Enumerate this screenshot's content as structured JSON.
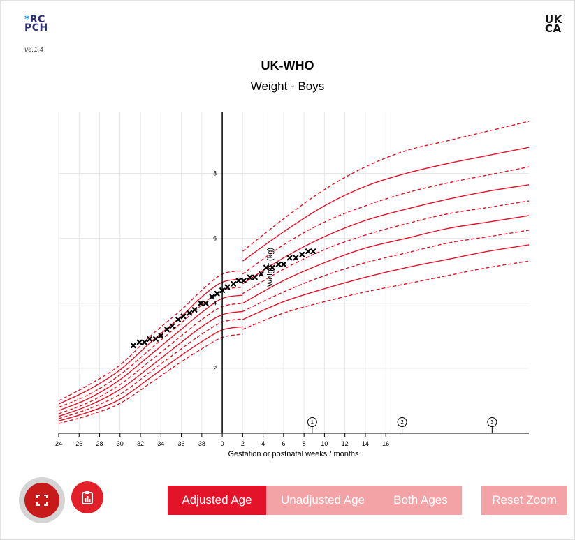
{
  "header": {
    "logo_line1": "RC",
    "logo_line2": "PCH",
    "version": "v6.1.4",
    "ukca_line1": "UK",
    "ukca_line2": "CA"
  },
  "chart_data": {
    "type": "line",
    "title": "UK-WHO",
    "subtitle": "Weight - Boys",
    "xlabel": "Gestation or postnatal weeks / months",
    "ylabel": "Weight (kg)",
    "x_ticks": [
      "24",
      "26",
      "28",
      "30",
      "32",
      "34",
      "36",
      "38",
      "0",
      "2",
      "4",
      "6",
      "8",
      "10",
      "12",
      "14",
      "16"
    ],
    "y_ticks": [
      "2",
      "4",
      "6",
      "8"
    ],
    "ylim": [
      0,
      9.9
    ],
    "grid": true,
    "line_color": "#e3142a",
    "measurement_color": "#000000",
    "milestones": [
      {
        "label": "1",
        "x_tick_position": 4.4
      },
      {
        "label": "2",
        "x_tick_position": 8.8
      },
      {
        "label": "3",
        "x_tick_position": 13.2
      }
    ],
    "note": "x positions below are expressed on the printed tick scale: 24-38 = gestation weeks, 0 = birth (40 weeks), 2-16 = postnatal months",
    "centile_lines": {
      "x": [
        24,
        27,
        30,
        33,
        36,
        38,
        40,
        42
      ],
      "preterm": [
        {
          "name": "99.6th",
          "style": "dashed",
          "values": [
            1.0,
            1.5,
            2.1,
            3.0,
            3.8,
            4.4,
            4.9,
            5.0
          ]
        },
        {
          "name": "98th",
          "style": "solid",
          "values": [
            0.9,
            1.35,
            1.95,
            2.8,
            3.6,
            4.2,
            4.65,
            4.75
          ]
        },
        {
          "name": "91st",
          "style": "dashed",
          "values": [
            0.8,
            1.2,
            1.8,
            2.6,
            3.4,
            3.95,
            4.4,
            4.5
          ]
        },
        {
          "name": "75th",
          "style": "solid",
          "values": [
            0.7,
            1.08,
            1.65,
            2.42,
            3.2,
            3.72,
            4.15,
            4.25
          ]
        },
        {
          "name": "50th",
          "style": "dashed",
          "values": [
            0.6,
            0.96,
            1.5,
            2.24,
            3.0,
            3.5,
            3.9,
            4.0
          ]
        },
        {
          "name": "25th",
          "style": "solid",
          "values": [
            0.52,
            0.86,
            1.35,
            2.06,
            2.8,
            3.28,
            3.65,
            3.75
          ]
        },
        {
          "name": "9th",
          "style": "dashed",
          "values": [
            0.45,
            0.76,
            1.2,
            1.9,
            2.6,
            3.05,
            3.42,
            3.52
          ]
        },
        {
          "name": "2nd",
          "style": "solid",
          "values": [
            0.38,
            0.66,
            1.05,
            1.72,
            2.4,
            2.82,
            3.18,
            3.28
          ]
        },
        {
          "name": "0.4th",
          "style": "dashed",
          "values": [
            0.3,
            0.56,
            0.92,
            1.55,
            2.2,
            2.6,
            2.95,
            3.05
          ]
        }
      ],
      "x_infant": [
        42,
        46,
        50,
        54,
        58,
        62,
        66,
        70
      ],
      "infant": [
        {
          "name": "99.6th",
          "style": "dashed",
          "values": [
            5.6,
            6.6,
            7.5,
            8.2,
            8.7,
            9.0,
            9.3,
            9.6
          ]
        },
        {
          "name": "98th",
          "style": "solid",
          "values": [
            5.3,
            6.2,
            7.0,
            7.6,
            8.0,
            8.3,
            8.55,
            8.8
          ]
        },
        {
          "name": "91st",
          "style": "dashed",
          "values": [
            4.9,
            5.8,
            6.5,
            7.0,
            7.4,
            7.7,
            7.95,
            8.2
          ]
        },
        {
          "name": "75th",
          "style": "solid",
          "values": [
            4.6,
            5.4,
            6.05,
            6.55,
            6.9,
            7.2,
            7.45,
            7.65
          ]
        },
        {
          "name": "50th",
          "style": "dashed",
          "values": [
            4.3,
            5.05,
            5.65,
            6.1,
            6.45,
            6.75,
            6.95,
            7.15
          ]
        },
        {
          "name": "25th",
          "style": "solid",
          "values": [
            4.0,
            4.7,
            5.25,
            5.7,
            6.0,
            6.3,
            6.5,
            6.7
          ]
        },
        {
          "name": "9th",
          "style": "dashed",
          "values": [
            3.75,
            4.35,
            4.85,
            5.25,
            5.55,
            5.85,
            6.05,
            6.25
          ]
        },
        {
          "name": "2nd",
          "style": "solid",
          "values": [
            3.5,
            4.05,
            4.45,
            4.8,
            5.1,
            5.35,
            5.6,
            5.8
          ]
        },
        {
          "name": "0.4th",
          "style": "dashed",
          "values": [
            3.2,
            3.7,
            4.05,
            4.35,
            4.6,
            4.85,
            5.1,
            5.3
          ]
        }
      ]
    },
    "measurements": {
      "x": [
        31.3,
        31.9,
        32.4,
        32.9,
        33.5,
        34.0,
        34.6,
        35.1,
        35.7,
        36.2,
        36.8,
        37.3,
        37.9,
        38.4,
        39.0,
        39.5,
        40.0,
        40.5,
        41.1,
        41.6,
        42.1,
        42.7,
        43.2,
        43.8,
        44.3,
        44.9,
        45.5,
        46.0,
        46.6,
        47.2,
        47.8,
        48.4,
        48.9
      ],
      "y": [
        2.7,
        2.8,
        2.8,
        2.9,
        2.9,
        3.0,
        3.2,
        3.3,
        3.5,
        3.6,
        3.7,
        3.8,
        4.0,
        4.0,
        4.2,
        4.3,
        4.4,
        4.5,
        4.6,
        4.7,
        4.7,
        4.8,
        4.8,
        4.9,
        5.1,
        5.1,
        5.2,
        5.2,
        5.4,
        5.4,
        5.5,
        5.6,
        5.6
      ]
    }
  },
  "controls": {
    "fullscreen_icon": "fullscreen-icon",
    "report_icon": "clipboard-chart-icon",
    "age_options": [
      "Adjusted Age",
      "Unadjusted Age",
      "Both Ages"
    ],
    "selected_age": "Adjusted Age",
    "reset_zoom": "Reset Zoom"
  }
}
